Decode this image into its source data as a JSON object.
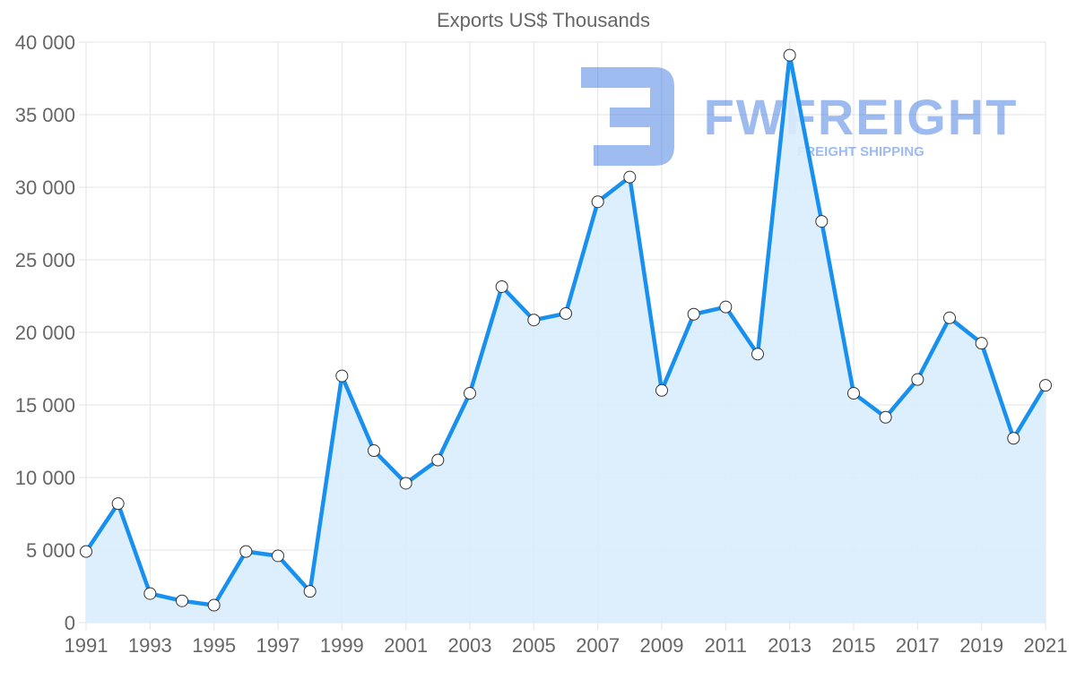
{
  "watermark": {
    "brand": "FWFREIGHT",
    "tagline": "FREIGHT SHIPPING"
  },
  "chart_data": {
    "type": "line",
    "title": "Exports US$ Thousands",
    "xlabel": "",
    "ylabel": "",
    "x": [
      1991,
      1992,
      1993,
      1994,
      1995,
      1996,
      1997,
      1998,
      1999,
      2000,
      2001,
      2002,
      2003,
      2004,
      2005,
      2006,
      2007,
      2008,
      2009,
      2010,
      2011,
      2012,
      2013,
      2014,
      2015,
      2016,
      2017,
      2018,
      2019,
      2020,
      2021
    ],
    "series": [
      {
        "name": "Exports US$ Thousands",
        "values": [
          4900,
          8200,
          2000,
          1500,
          1200,
          4900,
          4600,
          2150,
          17000,
          11850,
          9600,
          11200,
          15800,
          23150,
          20850,
          21300,
          29000,
          30700,
          16000,
          21250,
          21750,
          18500,
          39100,
          27650,
          15800,
          14150,
          16750,
          21000,
          19250,
          12700,
          16350
        ],
        "color": "#1890f0",
        "fill": "#d9ecfc"
      }
    ],
    "xlim": [
      1991,
      2021
    ],
    "ylim": [
      0,
      40000
    ],
    "x_ticks": [
      "1991",
      "1993",
      "1995",
      "1997",
      "1999",
      "2001",
      "2003",
      "2005",
      "2007",
      "2009",
      "2011",
      "2013",
      "2015",
      "2017",
      "2019",
      "2021"
    ],
    "y_ticks": [
      "0",
      "5 000",
      "10 000",
      "15 000",
      "20 000",
      "25 000",
      "30 000",
      "35 000",
      "40 000"
    ],
    "grid": true,
    "legend": "none"
  }
}
